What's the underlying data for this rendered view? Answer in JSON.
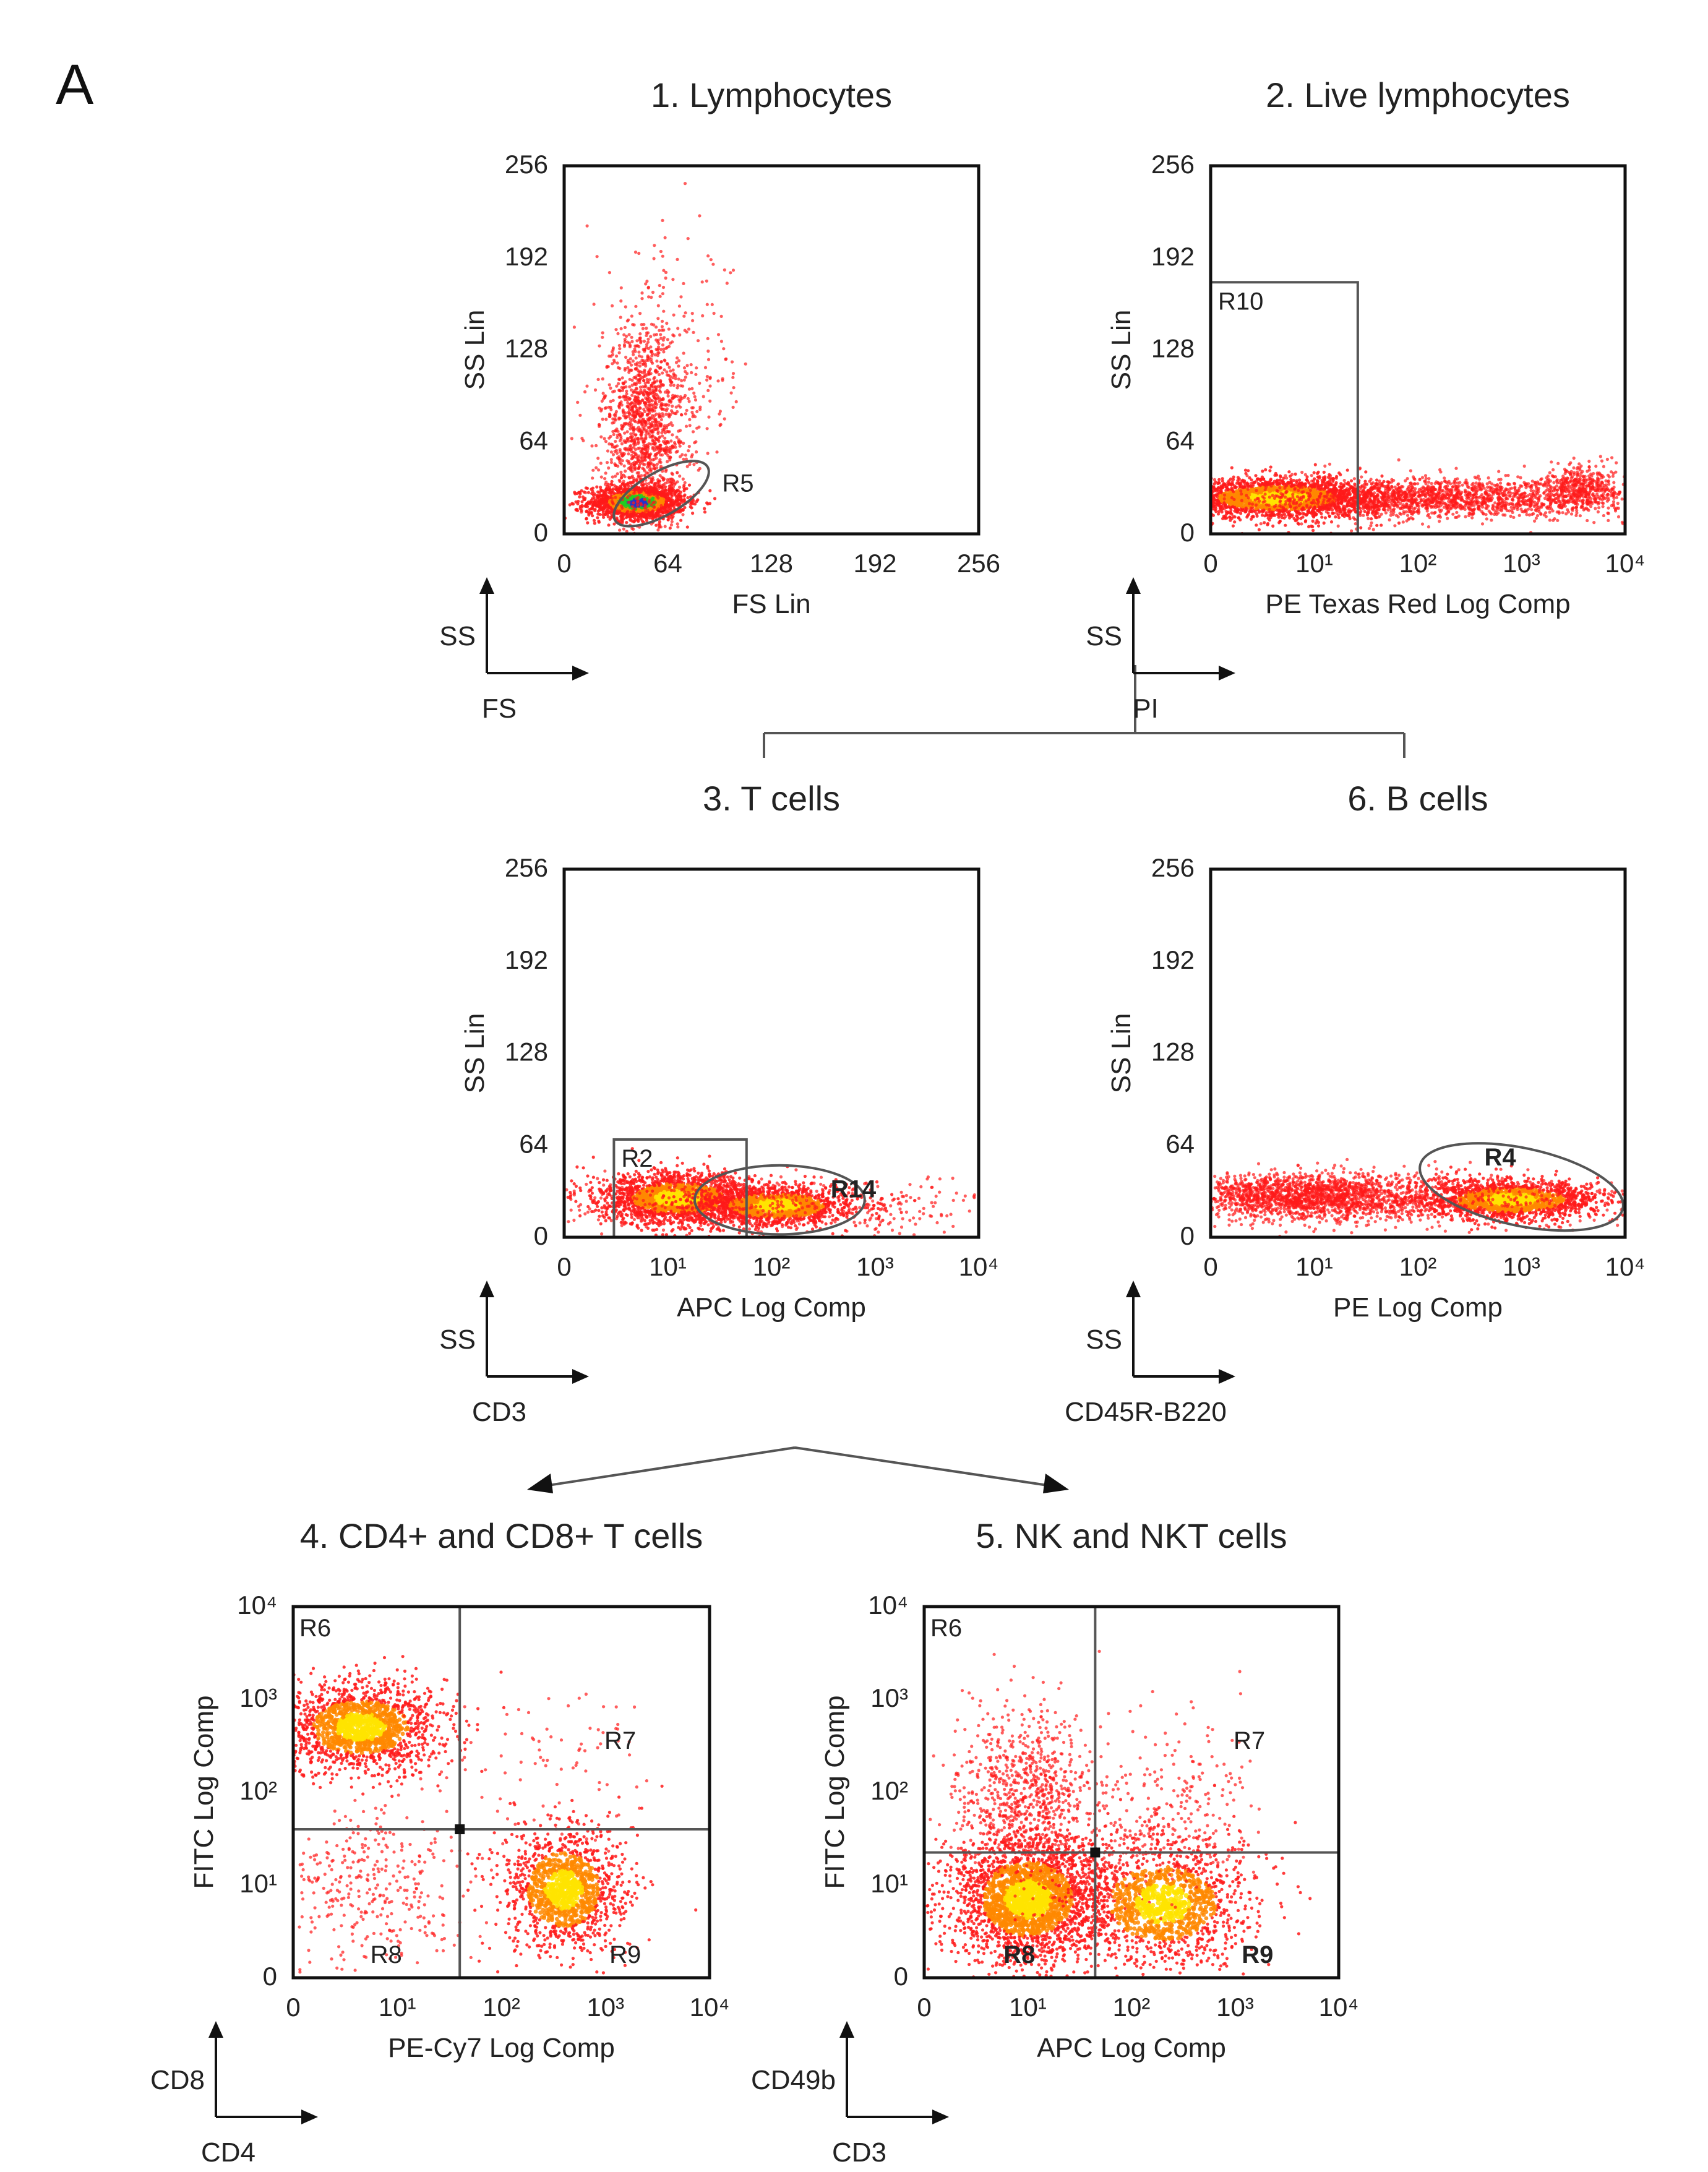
{
  "figure": {
    "panel_letter": "A"
  },
  "chart_data": [
    {
      "id": "p1",
      "type": "scatter",
      "title": "1. Lymphocytes",
      "xlabel": "FS Lin",
      "ylabel": "SS Lin",
      "xscale": "lin",
      "xlim": [
        0,
        256
      ],
      "ylim": [
        0,
        256
      ],
      "xticks": [
        "0",
        "64",
        "128",
        "192",
        "256"
      ],
      "yticks": [
        "0",
        "64",
        "128",
        "192",
        "256"
      ],
      "gates": [
        {
          "name": "R5",
          "shape": "ellipse",
          "cx": 60,
          "cy": 28,
          "rx": 33,
          "ry": 15,
          "angle": 30
        }
      ],
      "populations": [
        {
          "x": 45,
          "y": 22,
          "sx": 15,
          "sy": 6,
          "n": 1600,
          "dense": true
        },
        {
          "x": 50,
          "y": 75,
          "sx": 13,
          "sy": 35,
          "n": 1300
        },
        {
          "x": 65,
          "y": 110,
          "sx": 26,
          "sy": 45,
          "n": 200
        }
      ],
      "axis_arrows": {
        "y": "SS",
        "x": "FS"
      }
    },
    {
      "id": "p2",
      "type": "scatter",
      "title": "2. Live lymphocytes",
      "xlabel": "PE Texas Red Log Comp",
      "ylabel": "SS Lin",
      "xscale": "log",
      "xlim": [
        0,
        4
      ],
      "ylim": [
        0,
        256
      ],
      "xticks": [
        "0",
        "10¹",
        "10²",
        "10³",
        "10⁴"
      ],
      "yticks": [
        "0",
        "64",
        "128",
        "192",
        "256"
      ],
      "gates": [
        {
          "name": "R10",
          "shape": "rect",
          "x0": 0,
          "x1": 1.42,
          "y0": 0,
          "y1": 175
        }
      ],
      "populations": [
        {
          "x": 0.65,
          "y": 25,
          "sx": 0.5,
          "sy": 7,
          "n": 2200,
          "dense": true
        },
        {
          "x": 2.2,
          "y": 25,
          "sx": 0.9,
          "sy": 7,
          "n": 1800
        },
        {
          "x": 3.6,
          "y": 32,
          "sx": 0.2,
          "sy": 8,
          "n": 400
        }
      ],
      "axis_arrows": {
        "y": "SS",
        "x": "PI"
      }
    },
    {
      "id": "p3",
      "type": "scatter",
      "title": "3. T cells",
      "xlabel": "APC Log Comp",
      "ylabel": "SS Lin",
      "xscale": "log",
      "xlim": [
        0,
        4
      ],
      "ylim": [
        0,
        256
      ],
      "xticks": [
        "0",
        "10¹",
        "10²",
        "10³",
        "10⁴"
      ],
      "yticks": [
        "0",
        "64",
        "128",
        "192",
        "256"
      ],
      "gates": [
        {
          "name": "R2",
          "shape": "rect",
          "x0": 0.48,
          "x1": 1.76,
          "y0": 0,
          "y1": 68
        },
        {
          "name": "R14",
          "shape": "ellipse",
          "cx": 2.08,
          "cy": 26,
          "rx": 0.82,
          "ry": 24,
          "angle": 0
        }
      ],
      "populations": [
        {
          "x": 1.1,
          "y": 27,
          "sx": 0.38,
          "sy": 9,
          "n": 1800,
          "dense": true
        },
        {
          "x": 2.05,
          "y": 22,
          "sx": 0.4,
          "sy": 7,
          "n": 1300,
          "dense": true
        },
        {
          "x": 1.9,
          "y": 22,
          "sx": 1.2,
          "sy": 9,
          "n": 500
        }
      ],
      "axis_arrows": {
        "y": "SS",
        "x": "CD3"
      }
    },
    {
      "id": "p6",
      "type": "scatter",
      "title": "6. B cells",
      "xlabel": "PE Log Comp",
      "ylabel": "SS Lin",
      "xscale": "log",
      "xlim": [
        0,
        4
      ],
      "ylim": [
        0,
        256
      ],
      "xticks": [
        "0",
        "10¹",
        "10²",
        "10³",
        "10⁴"
      ],
      "yticks": [
        "0",
        "64",
        "128",
        "192",
        "256"
      ],
      "gates": [
        {
          "name": "R4",
          "shape": "ellipse",
          "cx": 3.0,
          "cy": 35,
          "rx": 1.0,
          "ry": 27,
          "angle": -12
        }
      ],
      "populations": [
        {
          "x": 0.9,
          "y": 28,
          "sx": 0.6,
          "sy": 8,
          "n": 1700
        },
        {
          "x": 2.9,
          "y": 26,
          "sx": 0.45,
          "sy": 7,
          "n": 1500,
          "dense": true
        },
        {
          "x": 2.0,
          "y": 27,
          "sx": 1.1,
          "sy": 9,
          "n": 600
        }
      ],
      "axis_arrows": {
        "y": "SS",
        "x": "CD45R-B220"
      }
    },
    {
      "id": "p4",
      "type": "scatter",
      "title": "4. CD4+ and CD8+ T cells",
      "xlabel": "PE-Cy7 Log Comp",
      "ylabel": "FITC Log Comp",
      "xscale": "log",
      "yscale": "log",
      "xlim": [
        0,
        4
      ],
      "ylim": [
        0,
        4
      ],
      "xticks": [
        "0",
        "10¹",
        "10²",
        "10³",
        "10⁴"
      ],
      "yticks": [
        "0",
        "10¹",
        "10²",
        "10³",
        "10⁴"
      ],
      "quadrant": {
        "x": 1.6,
        "y": 1.6,
        "labels": [
          "R6",
          "R7",
          "R8",
          "R9"
        ]
      },
      "populations": [
        {
          "x": 0.65,
          "y": 2.7,
          "sx": 0.4,
          "sy": 0.25,
          "n": 1500,
          "dense": true
        },
        {
          "x": 2.6,
          "y": 0.95,
          "sx": 0.3,
          "sy": 0.35,
          "n": 1200,
          "dense": true
        },
        {
          "x": 0.8,
          "y": 0.9,
          "sx": 0.45,
          "sy": 0.45,
          "n": 350
        },
        {
          "x": 2.4,
          "y": 2.3,
          "sx": 0.45,
          "sy": 0.45,
          "n": 80
        }
      ],
      "axis_arrows": {
        "y": "CD8",
        "x": "CD4"
      }
    },
    {
      "id": "p5",
      "type": "scatter",
      "title": "5. NK and NKT cells",
      "xlabel": "APC Log Comp",
      "ylabel": "FITC Log Comp",
      "xscale": "log",
      "yscale": "log",
      "xlim": [
        0,
        4
      ],
      "ylim": [
        0,
        4
      ],
      "xticks": [
        "0",
        "10¹",
        "10²",
        "10³",
        "10⁴"
      ],
      "yticks": [
        "0",
        "10¹",
        "10²",
        "10³",
        "10⁴"
      ],
      "quadrant": {
        "x": 1.65,
        "y": 1.35,
        "labels": [
          "R6",
          "R7",
          "R8",
          "R9"
        ]
      },
      "populations": [
        {
          "x": 1.0,
          "y": 0.85,
          "sx": 0.38,
          "sy": 0.35,
          "n": 2300,
          "dense": true
        },
        {
          "x": 1.0,
          "y": 2.0,
          "sx": 0.35,
          "sy": 0.45,
          "n": 800
        },
        {
          "x": 2.3,
          "y": 0.8,
          "sx": 0.45,
          "sy": 0.35,
          "n": 1300,
          "dense": true
        },
        {
          "x": 2.4,
          "y": 1.8,
          "sx": 0.4,
          "sy": 0.5,
          "n": 250
        }
      ],
      "axis_arrows": {
        "y": "CD49b",
        "x": "CD3"
      }
    }
  ],
  "colors": {
    "sparse": "#ff1a1a",
    "mid": "#ff8800",
    "dense": "#ffe400",
    "core_green": "#22cc22",
    "core_blue": "#2233cc",
    "gate": "#555555",
    "axis": "#111111"
  }
}
